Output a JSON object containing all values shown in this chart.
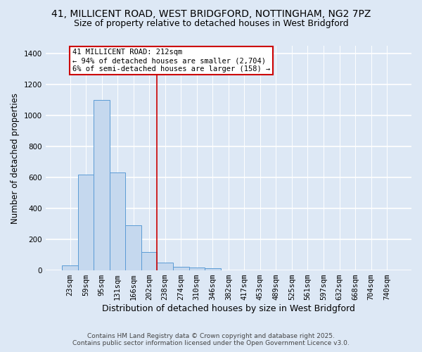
{
  "title_line1": "41, MILLICENT ROAD, WEST BRIDGFORD, NOTTINGHAM, NG2 7PZ",
  "title_line2": "Size of property relative to detached houses in West Bridgford",
  "xlabel": "Distribution of detached houses by size in West Bridgford",
  "ylabel": "Number of detached properties",
  "categories": [
    "23sqm",
    "59sqm",
    "95sqm",
    "131sqm",
    "166sqm",
    "202sqm",
    "238sqm",
    "274sqm",
    "310sqm",
    "346sqm",
    "382sqm",
    "417sqm",
    "453sqm",
    "489sqm",
    "525sqm",
    "561sqm",
    "597sqm",
    "632sqm",
    "668sqm",
    "704sqm",
    "740sqm"
  ],
  "values": [
    30,
    620,
    1100,
    630,
    290,
    120,
    50,
    25,
    20,
    12,
    0,
    0,
    0,
    0,
    0,
    0,
    0,
    0,
    0,
    0,
    0
  ],
  "bar_color": "#c5d8ee",
  "bar_edge_color": "#5b9bd5",
  "red_line_index": 5.5,
  "annotation_text": "41 MILLICENT ROAD: 212sqm\n← 94% of detached houses are smaller (2,704)\n6% of semi-detached houses are larger (158) →",
  "annotation_box_facecolor": "white",
  "annotation_box_edgecolor": "#cc0000",
  "red_line_color": "#cc0000",
  "ylim": [
    0,
    1450
  ],
  "yticks": [
    0,
    200,
    400,
    600,
    800,
    1000,
    1200,
    1400
  ],
  "footer_line1": "Contains HM Land Registry data © Crown copyright and database right 2025.",
  "footer_line2": "Contains public sector information licensed under the Open Government Licence v3.0.",
  "background_color": "#dde8f5",
  "plot_background_color": "#dde8f5",
  "grid_color": "white",
  "title_fontsize": 10,
  "subtitle_fontsize": 9,
  "tick_fontsize": 7.5,
  "ylabel_fontsize": 8.5,
  "xlabel_fontsize": 9,
  "annotation_fontsize": 7.5,
  "footer_fontsize": 6.5
}
